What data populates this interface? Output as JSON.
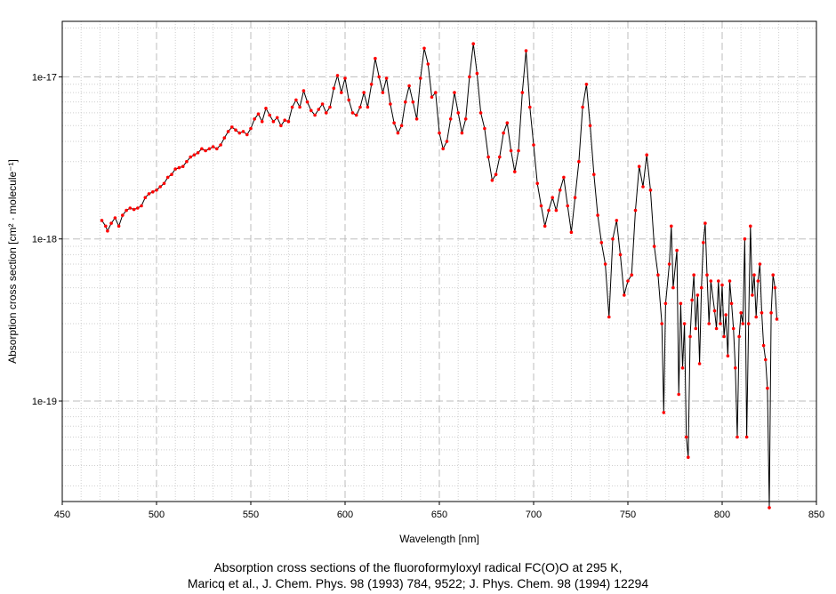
{
  "chart_data": {
    "type": "line",
    "title": "",
    "xlabel": "Wavelength [nm]",
    "ylabel": "Absorption cross section [cm² · molecule⁻¹]",
    "xlim": [
      450,
      850
    ],
    "ylim": [
      2.4e-20,
      2.2e-17
    ],
    "yscale": "log",
    "grid": true,
    "xticks": [
      {
        "value": 450,
        "label": "450"
      },
      {
        "value": 500,
        "label": "500"
      },
      {
        "value": 550,
        "label": "550"
      },
      {
        "value": 600,
        "label": "600"
      },
      {
        "value": 650,
        "label": "650"
      },
      {
        "value": 700,
        "label": "700"
      },
      {
        "value": 750,
        "label": "750"
      },
      {
        "value": 800,
        "label": "800"
      },
      {
        "value": 850,
        "label": "850"
      }
    ],
    "yticks": [
      {
        "value": 1e-19,
        "label": "1e-19"
      },
      {
        "value": 1e-18,
        "label": "1e-18"
      },
      {
        "value": 1e-17,
        "label": "1e-17"
      }
    ],
    "line_color": "#000000",
    "marker_color": "#ff0000",
    "series": [
      {
        "name": "",
        "points": [
          [
            471,
            1.3e-18
          ],
          [
            473,
            1.2e-18
          ],
          [
            474,
            1.12e-18
          ],
          [
            476,
            1.25e-18
          ],
          [
            478,
            1.35e-18
          ],
          [
            480,
            1.2e-18
          ],
          [
            482,
            1.4e-18
          ],
          [
            484,
            1.5e-18
          ],
          [
            486,
            1.55e-18
          ],
          [
            488,
            1.52e-18
          ],
          [
            490,
            1.55e-18
          ],
          [
            492,
            1.6e-18
          ],
          [
            494,
            1.8e-18
          ],
          [
            496,
            1.9e-18
          ],
          [
            498,
            1.95e-18
          ],
          [
            500,
            2e-18
          ],
          [
            502,
            2.1e-18
          ],
          [
            504,
            2.2e-18
          ],
          [
            506,
            2.4e-18
          ],
          [
            508,
            2.5e-18
          ],
          [
            510,
            2.7e-18
          ],
          [
            512,
            2.75e-18
          ],
          [
            514,
            2.8e-18
          ],
          [
            516,
            3e-18
          ],
          [
            518,
            3.2e-18
          ],
          [
            520,
            3.3e-18
          ],
          [
            522,
            3.4e-18
          ],
          [
            524,
            3.6e-18
          ],
          [
            526,
            3.5e-18
          ],
          [
            528,
            3.6e-18
          ],
          [
            530,
            3.7e-18
          ],
          [
            532,
            3.6e-18
          ],
          [
            534,
            3.8e-18
          ],
          [
            536,
            4.2e-18
          ],
          [
            538,
            4.6e-18
          ],
          [
            540,
            4.9e-18
          ],
          [
            542,
            4.7e-18
          ],
          [
            544,
            4.5e-18
          ],
          [
            546,
            4.6e-18
          ],
          [
            548,
            4.4e-18
          ],
          [
            550,
            4.8e-18
          ],
          [
            552,
            5.5e-18
          ],
          [
            554,
            5.9e-18
          ],
          [
            556,
            5.3e-18
          ],
          [
            558,
            6.4e-18
          ],
          [
            560,
            5.8e-18
          ],
          [
            562,
            5.3e-18
          ],
          [
            564,
            5.6e-18
          ],
          [
            566,
            5e-18
          ],
          [
            568,
            5.4e-18
          ],
          [
            570,
            5.3e-18
          ],
          [
            572,
            6.5e-18
          ],
          [
            574,
            7.2e-18
          ],
          [
            576,
            6.5e-18
          ],
          [
            578,
            8.2e-18
          ],
          [
            580,
            7e-18
          ],
          [
            582,
            6.2e-18
          ],
          [
            584,
            5.8e-18
          ],
          [
            586,
            6.3e-18
          ],
          [
            588,
            6.8e-18
          ],
          [
            590,
            6e-18
          ],
          [
            592,
            6.5e-18
          ],
          [
            594,
            8.5e-18
          ],
          [
            596,
            1.02e-17
          ],
          [
            598,
            8e-18
          ],
          [
            600,
            9.8e-18
          ],
          [
            602,
            7.2e-18
          ],
          [
            604,
            6e-18
          ],
          [
            606,
            5.8e-18
          ],
          [
            608,
            6.5e-18
          ],
          [
            610,
            8e-18
          ],
          [
            612,
            6.5e-18
          ],
          [
            614,
            9e-18
          ],
          [
            616,
            1.3e-17
          ],
          [
            618,
            1e-17
          ],
          [
            620,
            8e-18
          ],
          [
            622,
            9.8e-18
          ],
          [
            624,
            6.8e-18
          ],
          [
            626,
            5.2e-18
          ],
          [
            628,
            4.5e-18
          ],
          [
            630,
            5e-18
          ],
          [
            632,
            7e-18
          ],
          [
            634,
            8.8e-18
          ],
          [
            636,
            7e-18
          ],
          [
            638,
            5.5e-18
          ],
          [
            640,
            9.8e-18
          ],
          [
            642,
            1.5e-17
          ],
          [
            644,
            1.2e-17
          ],
          [
            646,
            7.5e-18
          ],
          [
            648,
            8e-18
          ],
          [
            650,
            4.5e-18
          ],
          [
            652,
            3.6e-18
          ],
          [
            654,
            4e-18
          ],
          [
            656,
            5.5e-18
          ],
          [
            658,
            8e-18
          ],
          [
            660,
            6e-18
          ],
          [
            662,
            4.5e-18
          ],
          [
            664,
            5.5e-18
          ],
          [
            666,
            1e-17
          ],
          [
            668,
            1.6e-17
          ],
          [
            670,
            1.05e-17
          ],
          [
            672,
            6e-18
          ],
          [
            674,
            4.8e-18
          ],
          [
            676,
            3.2e-18
          ],
          [
            678,
            2.3e-18
          ],
          [
            680,
            2.5e-18
          ],
          [
            682,
            3.2e-18
          ],
          [
            684,
            4.5e-18
          ],
          [
            686,
            5.2e-18
          ],
          [
            688,
            3.5e-18
          ],
          [
            690,
            2.6e-18
          ],
          [
            692,
            3.5e-18
          ],
          [
            694,
            8e-18
          ],
          [
            696,
            1.45e-17
          ],
          [
            698,
            6.5e-18
          ],
          [
            700,
            3.8e-18
          ],
          [
            702,
            2.2e-18
          ],
          [
            704,
            1.6e-18
          ],
          [
            706,
            1.2e-18
          ],
          [
            708,
            1.5e-18
          ],
          [
            710,
            1.8e-18
          ],
          [
            712,
            1.5e-18
          ],
          [
            714,
            2e-18
          ],
          [
            716,
            2.4e-18
          ],
          [
            718,
            1.6e-18
          ],
          [
            720,
            1.1e-18
          ],
          [
            722,
            1.8e-18
          ],
          [
            724,
            3e-18
          ],
          [
            726,
            6.5e-18
          ],
          [
            728,
            9e-18
          ],
          [
            730,
            5e-18
          ],
          [
            732,
            2.5e-18
          ],
          [
            734,
            1.4e-18
          ],
          [
            736,
            9.5e-19
          ],
          [
            738,
            7e-19
          ],
          [
            740,
            3.3e-19
          ],
          [
            742,
            1e-18
          ],
          [
            744,
            1.3e-18
          ],
          [
            746,
            8e-19
          ],
          [
            748,
            4.5e-19
          ],
          [
            750,
            5.5e-19
          ],
          [
            752,
            6e-19
          ],
          [
            754,
            1.5e-18
          ],
          [
            756,
            2.8e-18
          ],
          [
            758,
            2.1e-18
          ],
          [
            760,
            3.3e-18
          ],
          [
            762,
            2e-18
          ],
          [
            764,
            9e-19
          ],
          [
            766,
            6e-19
          ],
          [
            768,
            3e-19
          ],
          [
            769,
            8.5e-20
          ],
          [
            770,
            4e-19
          ],
          [
            772,
            7e-19
          ],
          [
            773,
            1.2e-18
          ],
          [
            774,
            5e-19
          ],
          [
            776,
            8.5e-19
          ],
          [
            777,
            1.1e-19
          ],
          [
            778,
            4e-19
          ],
          [
            779,
            1.6e-19
          ],
          [
            780,
            3e-19
          ],
          [
            781,
            6e-20
          ],
          [
            782,
            4.5e-20
          ],
          [
            783,
            2.5e-19
          ],
          [
            784,
            4.2e-19
          ],
          [
            785,
            6e-19
          ],
          [
            786,
            2.8e-19
          ],
          [
            787,
            4.5e-19
          ],
          [
            788,
            1.7e-19
          ],
          [
            789,
            5e-19
          ],
          [
            790,
            9.5e-19
          ],
          [
            791,
            1.25e-18
          ],
          [
            792,
            6e-19
          ],
          [
            793,
            3e-19
          ],
          [
            794,
            5.5e-19
          ],
          [
            796,
            3.6e-19
          ],
          [
            797,
            2.8e-19
          ],
          [
            798,
            5.5e-19
          ],
          [
            799,
            3e-19
          ],
          [
            800,
            5.2e-19
          ],
          [
            801,
            2.5e-19
          ],
          [
            802,
            3.4e-19
          ],
          [
            803,
            1.9e-19
          ],
          [
            804,
            5.5e-19
          ],
          [
            805,
            4e-19
          ],
          [
            806,
            2.8e-19
          ],
          [
            807,
            1.6e-19
          ],
          [
            808,
            6e-20
          ],
          [
            809,
            2.5e-19
          ],
          [
            810,
            3.5e-19
          ],
          [
            811,
            3e-19
          ],
          [
            812,
            1e-18
          ],
          [
            813,
            6e-20
          ],
          [
            814,
            3e-19
          ],
          [
            815,
            1.2e-18
          ],
          [
            816,
            4.5e-19
          ],
          [
            817,
            6e-19
          ],
          [
            818,
            3.3e-19
          ],
          [
            819,
            5.5e-19
          ],
          [
            820,
            7e-19
          ],
          [
            821,
            3.5e-19
          ],
          [
            822,
            2.2e-19
          ],
          [
            823,
            1.8e-19
          ],
          [
            824,
            1.2e-19
          ],
          [
            825,
            2.2e-20
          ],
          [
            826,
            3.5e-19
          ],
          [
            827,
            6e-19
          ],
          [
            828,
            5e-19
          ],
          [
            829,
            3.2e-19
          ]
        ]
      }
    ]
  },
  "caption": {
    "line1": "Absorption cross sections of the fluoroformyloxyl radical FC(O)O at 295 K,",
    "line2": "Maricq et al., J. Chem. Phys. 98 (1993) 784, 9522; J. Phys. Chem. 98 (1994) 12294"
  }
}
